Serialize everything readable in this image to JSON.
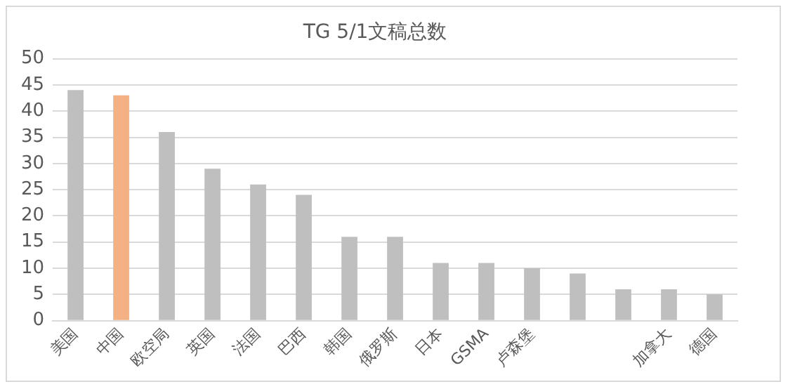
{
  "chart_data": {
    "type": "bar",
    "title": "TG 5/1文稿总数",
    "categories": [
      "美国",
      "中国",
      "欧空局",
      "英国",
      "法国",
      "巴西",
      "韩国",
      "俄罗斯",
      "日本",
      "GSMA",
      "卢森堡",
      null,
      null,
      "加拿大",
      "德国"
    ],
    "values": [
      44,
      43,
      36,
      29,
      26,
      24,
      16,
      16,
      11,
      11,
      10,
      9,
      6,
      6,
      5
    ],
    "colors": [
      "#bfbfbf",
      "#f4b183",
      "#bfbfbf",
      "#bfbfbf",
      "#bfbfbf",
      "#bfbfbf",
      "#bfbfbf",
      "#bfbfbf",
      "#bfbfbf",
      "#bfbfbf",
      "#bfbfbf",
      "#bfbfbf",
      "#bfbfbf",
      "#bfbfbf",
      "#bfbfbf"
    ],
    "ylim": [
      0,
      50
    ],
    "yticks": [
      0,
      5,
      10,
      15,
      20,
      25,
      30,
      35,
      40,
      45,
      50
    ],
    "grid": "y"
  }
}
